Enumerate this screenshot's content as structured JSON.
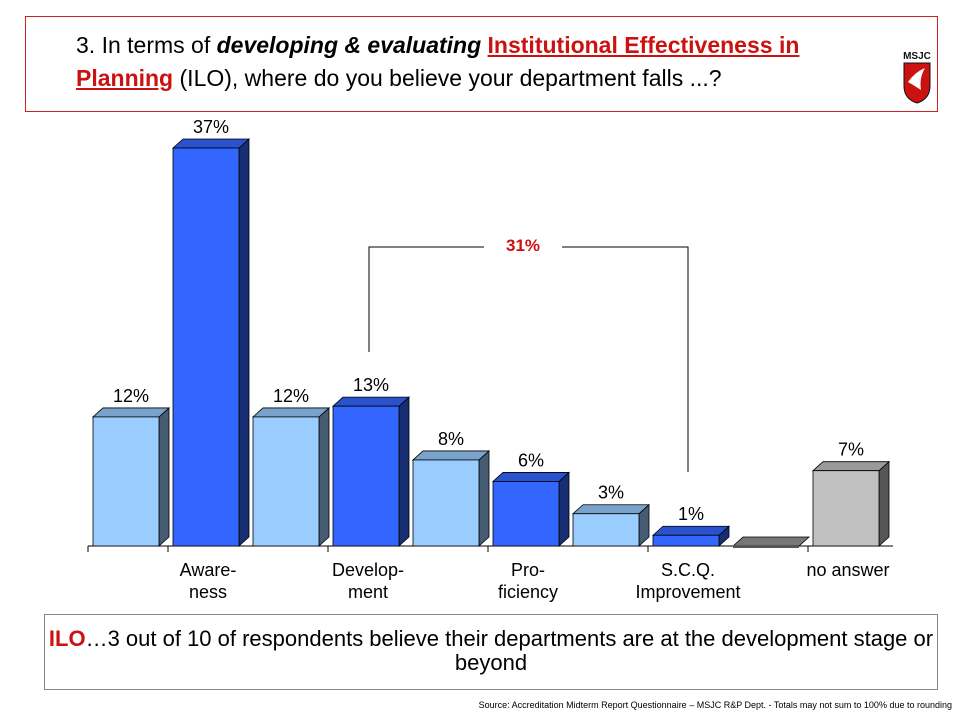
{
  "title": {
    "number": "3. In terms of ",
    "emphasis": "developing & evaluating",
    "highlight": "Institutional Effectiveness in Planning",
    "rest": " (ILO), where do you believe your department falls ...?"
  },
  "logo": {
    "icon": "msjc-logo-icon",
    "text": "MSJC"
  },
  "bracket_label": "31%",
  "note": {
    "lead": "ILO",
    "text": "…3 out of 10 of respondents believe their departments are at the development stage or beyond"
  },
  "source": "Source: Accreditation Midterm Report Questionnaire – MSJC R&P Dept. - Totals may not sum to 100% due to rounding",
  "colors": {
    "light_blue": "#99ccff",
    "dark_blue": "#3366ff",
    "gray": "#c0c0c0",
    "accent_red": "#cc1111"
  },
  "chart_data": {
    "type": "bar",
    "categories": [
      "Aware-\nness",
      "Develop-\nment",
      "Pro-\nficiency",
      "S.C.Q.\nImprovement",
      "no answer"
    ],
    "series": [
      {
        "values": [
          12,
          12,
          8,
          3,
          0
        ],
        "color": "#99ccff"
      },
      {
        "values": [
          37,
          13,
          6,
          1,
          7
        ],
        "color": "#3366ff"
      }
    ],
    "value_labels": [
      "12%",
      "37%",
      "12%",
      "13%",
      "8%",
      "6%",
      "3%",
      "1%",
      "7%"
    ],
    "ylim": [
      0,
      37
    ],
    "grid": false,
    "legend": "none"
  }
}
